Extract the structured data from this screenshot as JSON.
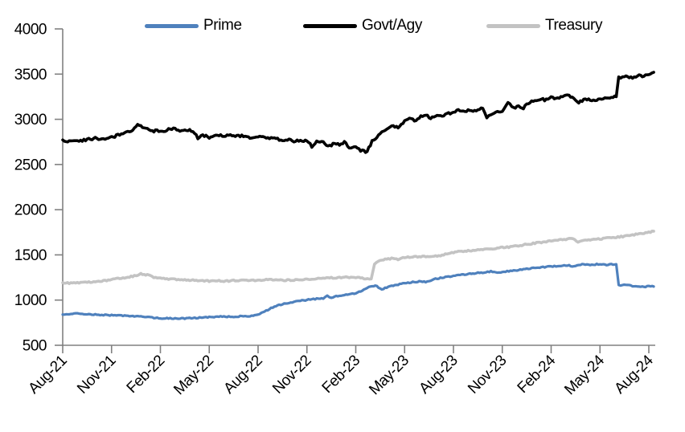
{
  "chart_data": {
    "type": "line",
    "title": "",
    "legend_position": "top",
    "grid": false,
    "axis_color": "#808080",
    "text_color": "#000000",
    "x_unit": "months since Aug-2021",
    "yaxis": {
      "min": 500,
      "max": 4000,
      "step": 500
    },
    "y_ticks": [
      4000,
      3500,
      3000,
      2500,
      2000,
      1500,
      1000,
      500
    ],
    "x_tick_labels": [
      "Aug-21",
      "Nov-21",
      "Feb-22",
      "May-22",
      "Aug-22",
      "Nov-22",
      "Feb-23",
      "May-23",
      "Aug-23",
      "Nov-23",
      "Feb-24",
      "May-24",
      "Aug-24"
    ],
    "x_tick_positions": [
      0,
      3,
      6,
      9,
      12,
      15,
      18,
      21,
      24,
      27,
      30,
      33,
      36
    ],
    "series": [
      {
        "name": "Prime",
        "color": "#4f81bd",
        "points": [
          [
            0,
            840
          ],
          [
            0.6,
            852
          ],
          [
            1,
            848
          ],
          [
            1.5,
            842
          ],
          [
            2,
            840
          ],
          [
            2.5,
            836
          ],
          [
            3,
            832
          ],
          [
            3.5,
            829
          ],
          [
            4,
            826
          ],
          [
            4.5,
            820
          ],
          [
            5,
            813
          ],
          [
            5.5,
            806
          ],
          [
            6,
            800
          ],
          [
            6.5,
            797
          ],
          [
            7,
            795
          ],
          [
            7.5,
            797
          ],
          [
            8,
            800
          ],
          [
            8.5,
            806
          ],
          [
            9,
            812
          ],
          [
            9.5,
            816
          ],
          [
            10,
            818
          ],
          [
            10.4,
            814
          ],
          [
            10.8,
            820
          ],
          [
            11.2,
            819
          ],
          [
            11.6,
            824
          ],
          [
            12,
            838
          ],
          [
            12.5,
            882
          ],
          [
            13,
            930
          ],
          [
            13.5,
            956
          ],
          [
            14,
            975
          ],
          [
            14.5,
            990
          ],
          [
            15,
            1002
          ],
          [
            15.5,
            1012
          ],
          [
            16,
            1020
          ],
          [
            16.25,
            1046
          ],
          [
            16.5,
            1026
          ],
          [
            17,
            1050
          ],
          [
            17.5,
            1063
          ],
          [
            18,
            1076
          ],
          [
            18.5,
            1112
          ],
          [
            18.9,
            1152
          ],
          [
            19.2,
            1162
          ],
          [
            19.6,
            1118
          ],
          [
            20,
            1148
          ],
          [
            20.5,
            1168
          ],
          [
            21,
            1185
          ],
          [
            21.5,
            1198
          ],
          [
            22,
            1208
          ],
          [
            22.3,
            1198
          ],
          [
            22.7,
            1226
          ],
          [
            23,
            1238
          ],
          [
            23.5,
            1254
          ],
          [
            24,
            1268
          ],
          [
            24.5,
            1280
          ],
          [
            25,
            1290
          ],
          [
            25.5,
            1300
          ],
          [
            26,
            1306
          ],
          [
            26.3,
            1316
          ],
          [
            26.7,
            1300
          ],
          [
            27,
            1310
          ],
          [
            27.5,
            1322
          ],
          [
            28,
            1332
          ],
          [
            28.5,
            1346
          ],
          [
            29,
            1356
          ],
          [
            29.5,
            1364
          ],
          [
            30,
            1372
          ],
          [
            30.5,
            1380
          ],
          [
            31,
            1386
          ],
          [
            31.3,
            1374
          ],
          [
            31.7,
            1392
          ],
          [
            32,
            1396
          ],
          [
            32.5,
            1390
          ],
          [
            33,
            1400
          ],
          [
            33.3,
            1390
          ],
          [
            33.7,
            1398
          ],
          [
            34,
            1396
          ],
          [
            34.15,
            1162
          ],
          [
            34.6,
            1168
          ],
          [
            35,
            1156
          ],
          [
            35.5,
            1146
          ],
          [
            36,
            1152
          ],
          [
            36.3,
            1150
          ]
        ]
      },
      {
        "name": "Govt/Agy",
        "color": "#000000",
        "points": [
          [
            0,
            2772
          ],
          [
            0.4,
            2758
          ],
          [
            0.8,
            2776
          ],
          [
            1.2,
            2762
          ],
          [
            1.6,
            2780
          ],
          [
            2,
            2788
          ],
          [
            2.4,
            2778
          ],
          [
            2.8,
            2800
          ],
          [
            3.2,
            2812
          ],
          [
            3.6,
            2836
          ],
          [
            4,
            2858
          ],
          [
            4.3,
            2880
          ],
          [
            4.6,
            2938
          ],
          [
            4.9,
            2912
          ],
          [
            5.2,
            2895
          ],
          [
            5.5,
            2868
          ],
          [
            5.8,
            2872
          ],
          [
            6.1,
            2860
          ],
          [
            6.5,
            2890
          ],
          [
            6.9,
            2898
          ],
          [
            7.3,
            2868
          ],
          [
            7.7,
            2880
          ],
          [
            8,
            2874
          ],
          [
            8.3,
            2792
          ],
          [
            8.6,
            2822
          ],
          [
            9,
            2800
          ],
          [
            9.4,
            2832
          ],
          [
            9.8,
            2818
          ],
          [
            10.2,
            2824
          ],
          [
            10.6,
            2808
          ],
          [
            11,
            2822
          ],
          [
            11.4,
            2798
          ],
          [
            11.8,
            2812
          ],
          [
            12.2,
            2800
          ],
          [
            12.6,
            2792
          ],
          [
            13,
            2796
          ],
          [
            13.4,
            2768
          ],
          [
            13.8,
            2778
          ],
          [
            14.2,
            2756
          ],
          [
            14.6,
            2768
          ],
          [
            15,
            2760
          ],
          [
            15.3,
            2702
          ],
          [
            15.6,
            2758
          ],
          [
            16,
            2740
          ],
          [
            16.3,
            2698
          ],
          [
            16.7,
            2732
          ],
          [
            17,
            2714
          ],
          [
            17.3,
            2744
          ],
          [
            17.7,
            2678
          ],
          [
            18,
            2692
          ],
          [
            18.3,
            2652
          ],
          [
            18.7,
            2642
          ],
          [
            19,
            2758
          ],
          [
            19.3,
            2788
          ],
          [
            19.6,
            2872
          ],
          [
            20,
            2898
          ],
          [
            20.3,
            2930
          ],
          [
            20.6,
            2912
          ],
          [
            21,
            2982
          ],
          [
            21.3,
            3002
          ],
          [
            21.6,
            2986
          ],
          [
            22,
            3030
          ],
          [
            22.3,
            3046
          ],
          [
            22.6,
            3018
          ],
          [
            23,
            3052
          ],
          [
            23.3,
            3038
          ],
          [
            23.6,
            3062
          ],
          [
            24,
            3074
          ],
          [
            24.3,
            3098
          ],
          [
            24.6,
            3084
          ],
          [
            25,
            3108
          ],
          [
            25.4,
            3088
          ],
          [
            25.8,
            3122
          ],
          [
            26.05,
            3028
          ],
          [
            26.3,
            3058
          ],
          [
            26.6,
            3074
          ],
          [
            27,
            3088
          ],
          [
            27.35,
            3188
          ],
          [
            27.7,
            3128
          ],
          [
            28,
            3142
          ],
          [
            28.3,
            3126
          ],
          [
            28.6,
            3178
          ],
          [
            29,
            3204
          ],
          [
            29.3,
            3228
          ],
          [
            29.6,
            3214
          ],
          [
            30,
            3238
          ],
          [
            30.3,
            3224
          ],
          [
            30.6,
            3250
          ],
          [
            31,
            3266
          ],
          [
            31.3,
            3238
          ],
          [
            31.6,
            3186
          ],
          [
            32,
            3212
          ],
          [
            32.3,
            3226
          ],
          [
            32.6,
            3214
          ],
          [
            33,
            3226
          ],
          [
            33.3,
            3246
          ],
          [
            33.6,
            3230
          ],
          [
            34,
            3250
          ],
          [
            34.15,
            3458
          ],
          [
            34.5,
            3474
          ],
          [
            34.8,
            3460
          ],
          [
            35.1,
            3470
          ],
          [
            35.4,
            3482
          ],
          [
            35.7,
            3476
          ],
          [
            36,
            3498
          ],
          [
            36.3,
            3520
          ]
        ]
      },
      {
        "name": "Treasury",
        "color": "#c3c3c3",
        "points": [
          [
            0,
            1192
          ],
          [
            0.5,
            1186
          ],
          [
            1,
            1192
          ],
          [
            1.5,
            1196
          ],
          [
            2,
            1202
          ],
          [
            2.5,
            1212
          ],
          [
            3,
            1228
          ],
          [
            3.5,
            1240
          ],
          [
            4,
            1252
          ],
          [
            4.5,
            1272
          ],
          [
            4.8,
            1292
          ],
          [
            5.2,
            1278
          ],
          [
            5.6,
            1252
          ],
          [
            6,
            1240
          ],
          [
            6.5,
            1234
          ],
          [
            7,
            1230
          ],
          [
            7.5,
            1224
          ],
          [
            8,
            1220
          ],
          [
            8.5,
            1214
          ],
          [
            9,
            1210
          ],
          [
            9.5,
            1213
          ],
          [
            10,
            1210
          ],
          [
            10.5,
            1216
          ],
          [
            11,
            1220
          ],
          [
            11.5,
            1217
          ],
          [
            12,
            1221
          ],
          [
            12.5,
            1225
          ],
          [
            13,
            1226
          ],
          [
            13.5,
            1220
          ],
          [
            14,
            1221
          ],
          [
            14.5,
            1226
          ],
          [
            15,
            1231
          ],
          [
            15.5,
            1236
          ],
          [
            16,
            1241
          ],
          [
            16.5,
            1246
          ],
          [
            17,
            1251
          ],
          [
            17.5,
            1253
          ],
          [
            18,
            1250
          ],
          [
            18.5,
            1241
          ],
          [
            18.95,
            1234
          ],
          [
            19.15,
            1402
          ],
          [
            19.4,
            1438
          ],
          [
            19.7,
            1450
          ],
          [
            20,
            1455
          ],
          [
            20.3,
            1462
          ],
          [
            20.6,
            1450
          ],
          [
            21,
            1472
          ],
          [
            21.5,
            1478
          ],
          [
            22,
            1481
          ],
          [
            22.5,
            1483
          ],
          [
            23,
            1487
          ],
          [
            23.5,
            1506
          ],
          [
            24,
            1528
          ],
          [
            24.5,
            1540
          ],
          [
            25,
            1546
          ],
          [
            25.5,
            1553
          ],
          [
            26,
            1562
          ],
          [
            26.5,
            1572
          ],
          [
            27,
            1582
          ],
          [
            27.5,
            1588
          ],
          [
            28,
            1602
          ],
          [
            28.5,
            1616
          ],
          [
            29,
            1630
          ],
          [
            29.5,
            1642
          ],
          [
            30,
            1653
          ],
          [
            30.5,
            1665
          ],
          [
            31,
            1675
          ],
          [
            31.25,
            1688
          ],
          [
            31.65,
            1643
          ],
          [
            32,
            1656
          ],
          [
            32.5,
            1666
          ],
          [
            33,
            1676
          ],
          [
            33.5,
            1686
          ],
          [
            34,
            1696
          ],
          [
            34.5,
            1706
          ],
          [
            35,
            1720
          ],
          [
            35.5,
            1736
          ],
          [
            36,
            1750
          ],
          [
            36.3,
            1762
          ]
        ]
      }
    ]
  }
}
